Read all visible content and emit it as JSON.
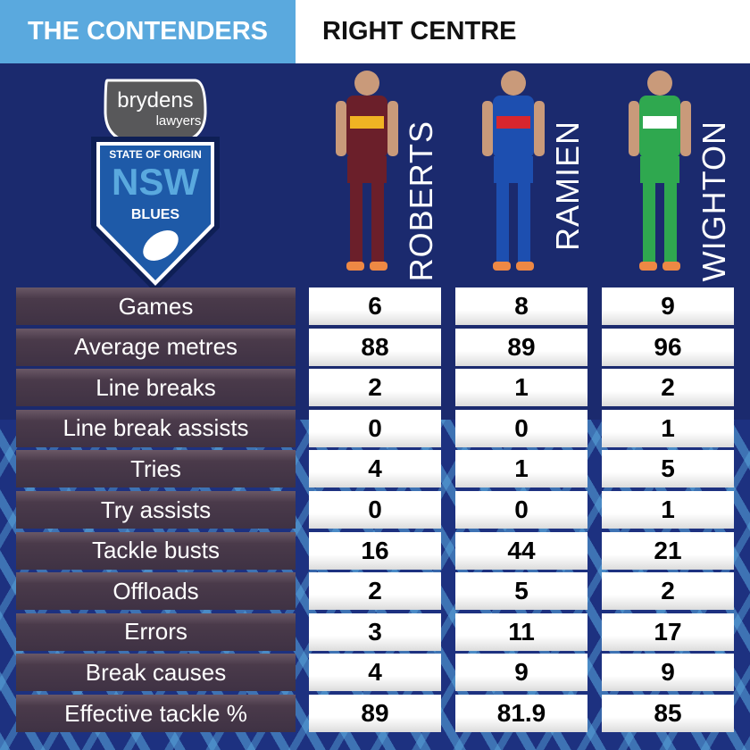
{
  "header": {
    "left_title": "THE CONTENDERS",
    "right_title": "RIGHT CENTRE"
  },
  "logo": {
    "sponsor": "brydens",
    "sponsor_sub": "lawyers",
    "line1": "STATE OF ORIGIN",
    "line2": "NSW",
    "line3": "BLUES"
  },
  "colors": {
    "header_blue": "#5aa9de",
    "navy": "#1b2a6e",
    "label_bg": "#433545"
  },
  "players": [
    {
      "name": "ROBERTS",
      "jersey": "#6b1f2a",
      "trim": "#f0b323"
    },
    {
      "name": "RAMIEN",
      "jersey": "#1d4fb0",
      "trim": "#d8262e"
    },
    {
      "name": "WIGHTON",
      "jersey": "#2fa84f",
      "trim": "#ffffff"
    }
  ],
  "stats": [
    {
      "label": "Games",
      "values": [
        "6",
        "8",
        "9"
      ]
    },
    {
      "label": "Average metres",
      "values": [
        "88",
        "89",
        "96"
      ]
    },
    {
      "label": "Line breaks",
      "values": [
        "2",
        "1",
        "2"
      ]
    },
    {
      "label": "Line break assists",
      "values": [
        "0",
        "0",
        "1"
      ]
    },
    {
      "label": "Tries",
      "values": [
        "4",
        "1",
        "5"
      ]
    },
    {
      "label": "Try assists",
      "values": [
        "0",
        "0",
        "1"
      ]
    },
    {
      "label": "Tackle busts",
      "values": [
        "16",
        "44",
        "21"
      ]
    },
    {
      "label": "Offloads",
      "values": [
        "2",
        "5",
        "2"
      ]
    },
    {
      "label": "Errors",
      "values": [
        "3",
        "11",
        "17"
      ]
    },
    {
      "label": "Break causes",
      "values": [
        "4",
        "9",
        "9"
      ]
    },
    {
      "label": "Effective tackle %",
      "values": [
        "89",
        "81.9",
        "85"
      ]
    }
  ]
}
